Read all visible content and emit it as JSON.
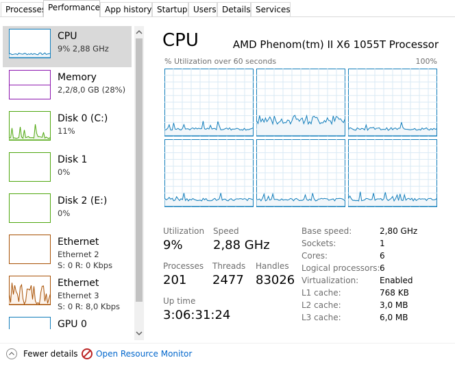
{
  "tabs": [
    "Processes",
    "Performance",
    "App history",
    "Startup",
    "Users",
    "Details",
    "Services"
  ],
  "sidebar": [
    {
      "title": "CPU",
      "lines": [
        "9% 2,88 GHz"
      ]
    },
    {
      "title": "Memory",
      "lines": [
        "2,2/8,0 GB (28%)"
      ]
    },
    {
      "title": "Disk 0 (C:)",
      "lines": [
        "11%"
      ]
    },
    {
      "title": "Disk 1",
      "lines": [
        "0%"
      ]
    },
    {
      "title": "Disk 2 (E:)",
      "lines": [
        "0%"
      ]
    },
    {
      "title": "Ethernet",
      "lines": [
        "Ethernet 2",
        "S: 0 R: 0 Kbps"
      ]
    },
    {
      "title": "Ethernet",
      "lines": [
        "Ethernet 3",
        "S: 0 R: 8,0 Kbps"
      ]
    },
    {
      "title": "GPU 0",
      "lines": []
    }
  ],
  "main": {
    "title": "CPU",
    "processor": "AMD Phenom(tm) II X6 1055T Processor",
    "graph_label": "% Utilization over 60 seconds",
    "graph_max": "100%",
    "stats": [
      {
        "label": "Utilization",
        "value": "9%"
      },
      {
        "label": "Speed",
        "value": "2,88 GHz"
      },
      {
        "label": "Processes",
        "value": "201"
      },
      {
        "label": "Threads",
        "value": "2477"
      },
      {
        "label": "Handles",
        "value": "83026"
      },
      {
        "label": "Up time",
        "value": "3:06:31:24"
      }
    ],
    "details": [
      [
        "Base speed:",
        "2,80 GHz"
      ],
      [
        "Sockets:",
        "1"
      ],
      [
        "Cores:",
        "6"
      ],
      [
        "Logical processors:",
        "6"
      ],
      [
        "Virtualization:",
        "Enabled"
      ],
      [
        "L1 cache:",
        "768 KB"
      ],
      [
        "L2 cache:",
        "3,0 MB"
      ],
      [
        "L3 cache:",
        "6,0 MB"
      ]
    ]
  },
  "footer": {
    "fewer_details": "Fewer details",
    "resource_monitor": "Open Resource Monitor"
  }
}
